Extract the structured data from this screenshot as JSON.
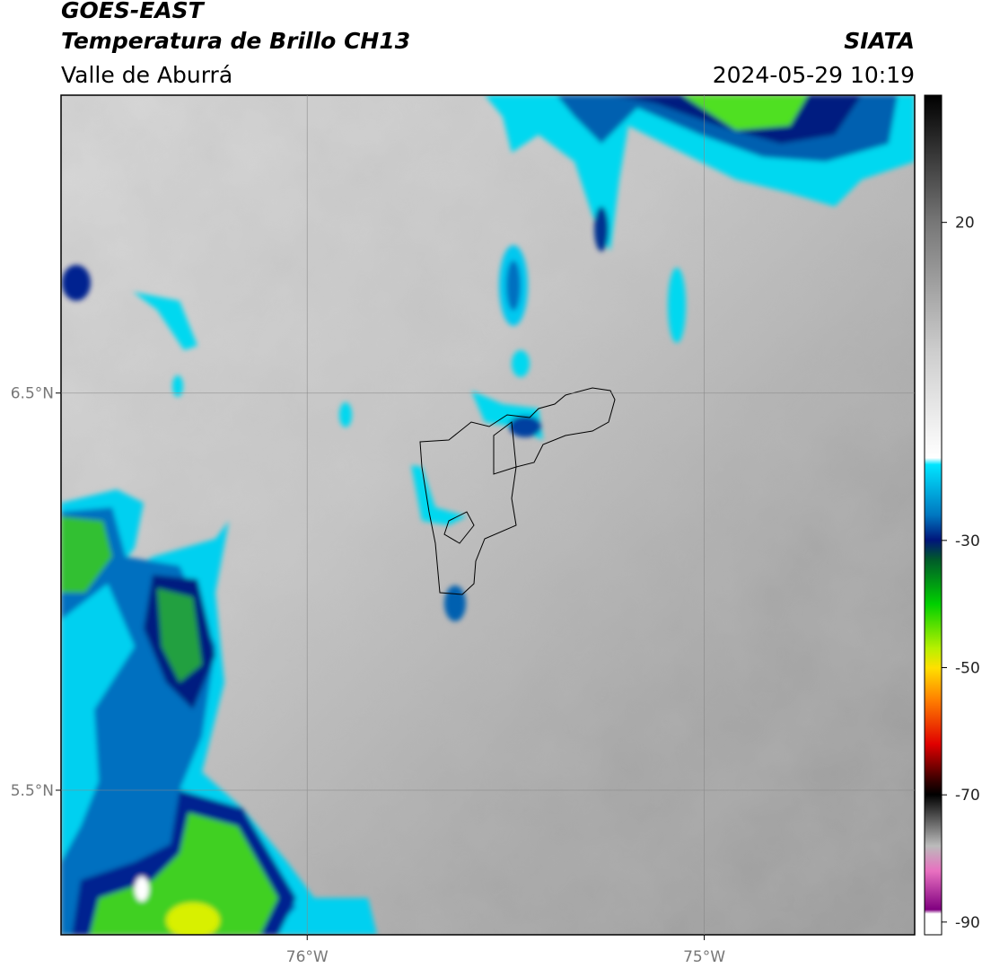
{
  "header": {
    "title": "GOES-EAST",
    "subtitle": "Temperatura de Brillo CH13",
    "region": "Valle de Aburrá",
    "source": "SIATA",
    "datetime": "2024-05-29 10:19"
  },
  "map": {
    "xlim": [
      -76.62,
      -74.47
    ],
    "ylim": [
      5.136,
      7.25
    ],
    "xticks": [
      {
        "value": -76,
        "label": "76°W"
      },
      {
        "value": -75,
        "label": "75°W"
      }
    ],
    "yticks": [
      {
        "value": 6.5,
        "label": "6.5°N"
      },
      {
        "value": 5.5,
        "label": "5.5°N"
      }
    ],
    "grid": true
  },
  "colorbar": {
    "lim": [
      -92,
      40
    ],
    "ticks": [
      20,
      -30,
      -50,
      -70,
      -90
    ]
  }
}
